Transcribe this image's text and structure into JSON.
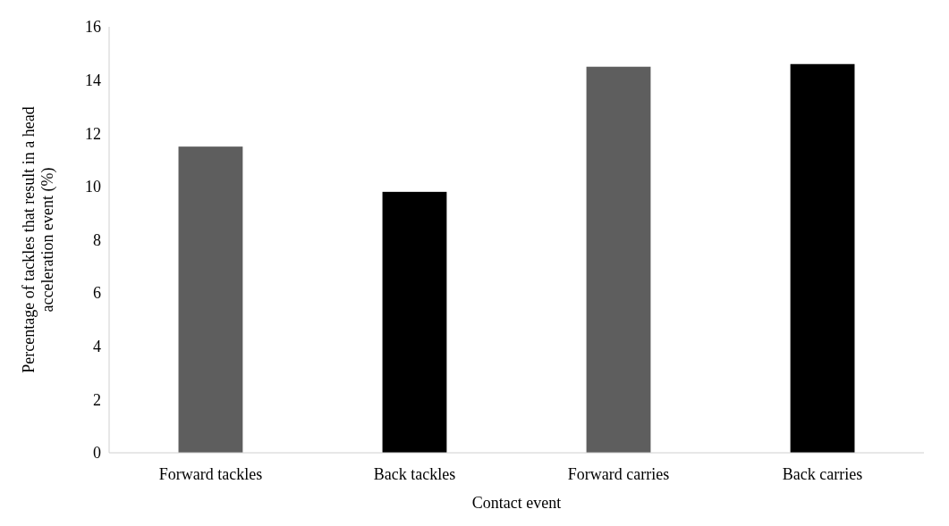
{
  "chart_data": {
    "type": "bar",
    "xlabel": "Contact event",
    "ylabel": "Percentage of tackles that result in a head acceleration event (%)",
    "categories": [
      "Forward tackles",
      "Back tackles",
      "Forward carries",
      "Back carries"
    ],
    "values": [
      11.5,
      9.8,
      14.5,
      14.6
    ],
    "colors": [
      "#5e5e5e",
      "#000000",
      "#5e5e5e",
      "#000000"
    ],
    "ylim": [
      0,
      16
    ],
    "yticks": [
      0,
      2,
      4,
      6,
      8,
      10,
      12,
      14,
      16
    ],
    "grid": false
  }
}
